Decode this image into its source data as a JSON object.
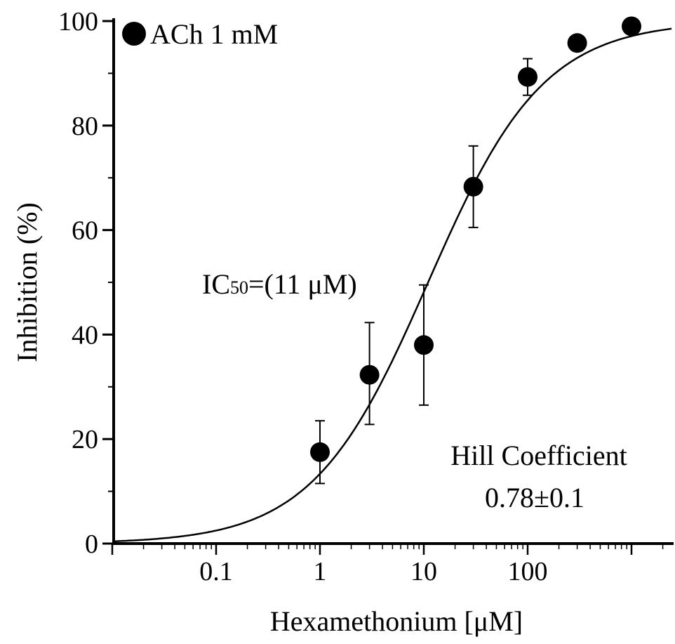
{
  "chart_data": {
    "type": "scatter",
    "xscale": "log",
    "xlabel": "Hexamethonium [μM]",
    "ylabel": "Inhibition (%)",
    "xlim": [
      0.01,
      3000
    ],
    "ylim": [
      0,
      100
    ],
    "xticks": [
      0.1,
      1,
      10,
      100
    ],
    "xtick_labels": [
      "0.1",
      "1",
      "10",
      "100"
    ],
    "yticks": [
      0,
      20,
      40,
      60,
      80,
      100
    ],
    "ytick_labels": [
      "0",
      "20",
      "40",
      "60",
      "80",
      "100"
    ],
    "legend": {
      "label": "ACh 1 mM",
      "marker": "filled-circle",
      "position": "top-left"
    },
    "series": [
      {
        "name": "ACh 1 mM",
        "points": [
          {
            "x": 1,
            "y": 17.5,
            "err_low": 6,
            "err_high": 6
          },
          {
            "x": 3,
            "y": 32.3,
            "err_low": 9.5,
            "err_high": 10
          },
          {
            "x": 10,
            "y": 38,
            "err_low": 11.5,
            "err_high": 11.5
          },
          {
            "x": 30,
            "y": 68.3,
            "err_low": 7.8,
            "err_high": 7.8
          },
          {
            "x": 100,
            "y": 89.3,
            "err_low": 3.5,
            "err_high": 3.5
          },
          {
            "x": 300,
            "y": 95.8,
            "err_low": 0,
            "err_high": 0
          },
          {
            "x": 1000,
            "y": 99,
            "err_low": 0,
            "err_high": 0
          }
        ]
      }
    ],
    "fit_curve": {
      "model": "hill",
      "ic50": 11,
      "hill": 0.78,
      "top": 100,
      "bottom": 0
    },
    "annotations": {
      "ic50_prefix": "IC",
      "ic50_sub": "50",
      "ic50_rest": "=(11 μM)",
      "hill_line1": "Hill Coefficient",
      "hill_line2": "0.78±0.1"
    }
  }
}
